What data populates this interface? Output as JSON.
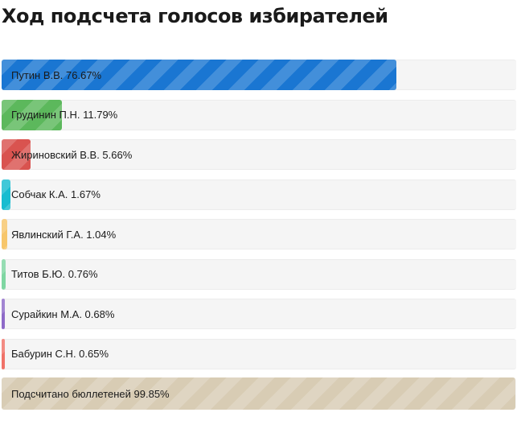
{
  "title": "Ход подсчета голосов избирателей",
  "colors": {
    "track": "#f5f5f5",
    "total": "#d8ccb4"
  },
  "candidates": [
    {
      "name": "Путин В.В.",
      "percent": 76.67,
      "label": "Путин В.В. 76.67%",
      "color": "#1a76d2"
    },
    {
      "name": "Грудинин П.Н.",
      "percent": 11.79,
      "label": "Грудинин П.Н. 11.79%",
      "color": "#5cb85c"
    },
    {
      "name": "Жириновский В.В.",
      "percent": 5.66,
      "label": "Жириновский В.В. 5.66%",
      "color": "#d9534f"
    },
    {
      "name": "Собчак К.А.",
      "percent": 1.67,
      "label": "Собчак К.А. 1.67%",
      "color": "#17bcd0"
    },
    {
      "name": "Явлинский Г.А.",
      "percent": 1.04,
      "label": "Явлинский Г.А. 1.04%",
      "color": "#f7c66b"
    },
    {
      "name": "Титов Б.Ю.",
      "percent": 0.76,
      "label": "Титов Б.Ю. 0.76%",
      "color": "#7fd6a2"
    },
    {
      "name": "Сурайкин М.А.",
      "percent": 0.68,
      "label": "Сурайкин М.А. 0.68%",
      "color": "#8e6ac8"
    },
    {
      "name": "Бабурин С.Н.",
      "percent": 0.65,
      "label": "Бабурин С.Н. 0.65%",
      "color": "#f07268"
    }
  ],
  "counted": {
    "percent": 99.85,
    "label": "Подсчитано бюллетеней 99.85%"
  }
}
